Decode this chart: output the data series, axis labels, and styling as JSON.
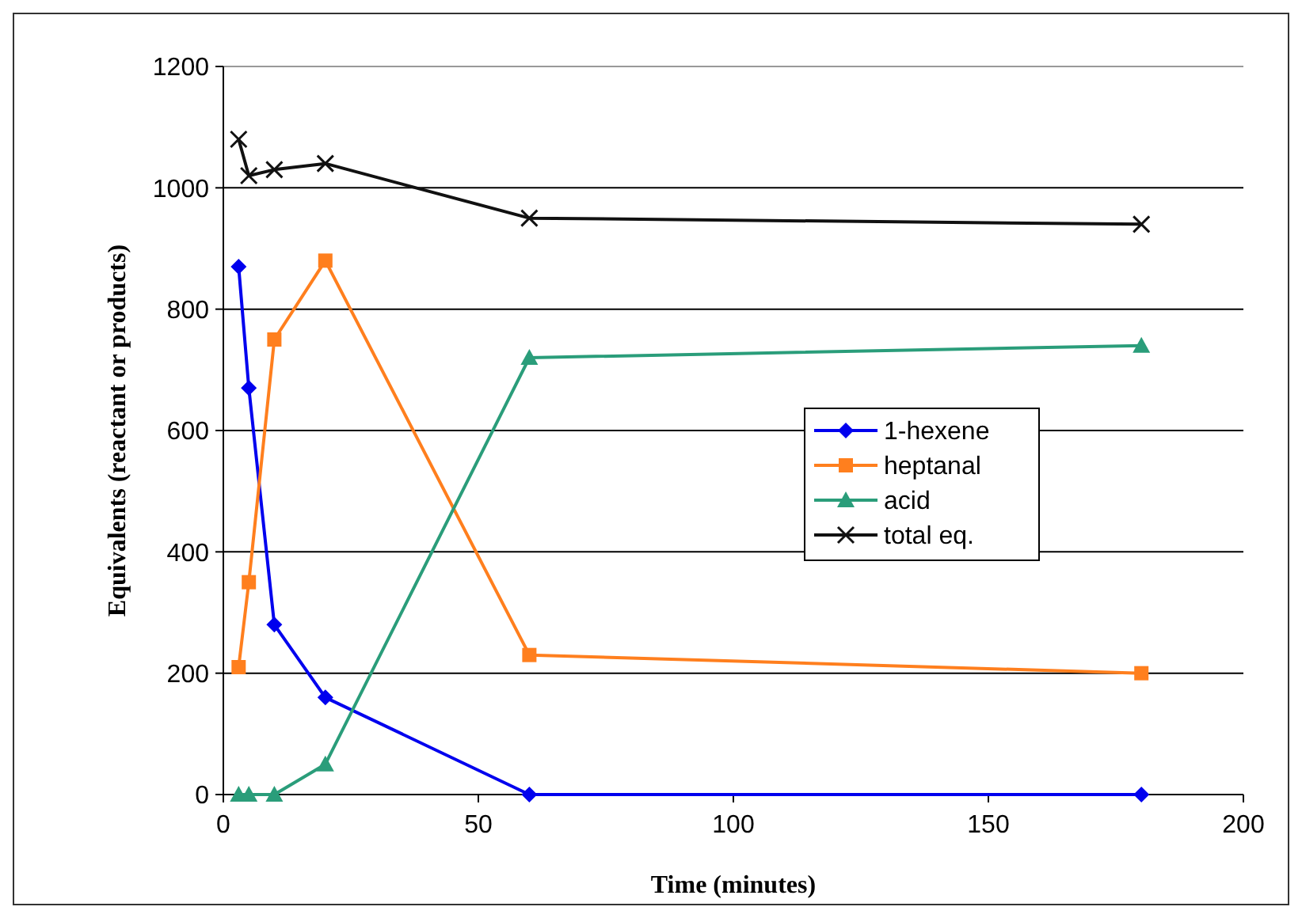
{
  "chart_data": {
    "type": "line",
    "xlabel": "Time (minutes)",
    "ylabel": "Equivalents (reactant or products)",
    "x": [
      3,
      5,
      10,
      20,
      60,
      180
    ],
    "series": [
      {
        "name": "1-hexene",
        "color": "#0000ee",
        "marker": "diamond",
        "values": [
          870,
          670,
          280,
          160,
          0,
          0
        ]
      },
      {
        "name": "heptanal",
        "color": "#ff7f1e",
        "marker": "square",
        "values": [
          210,
          350,
          750,
          880,
          230,
          200
        ]
      },
      {
        "name": "acid",
        "color": "#2a9d7a",
        "marker": "triangle",
        "values": [
          0,
          0,
          0,
          50,
          720,
          740
        ]
      },
      {
        "name": "total eq.",
        "color": "#111111",
        "marker": "cross",
        "values": [
          1080,
          1020,
          1030,
          1040,
          950,
          940
        ]
      }
    ],
    "xlim": [
      0,
      200
    ],
    "xticks": [
      0,
      50,
      100,
      150,
      200
    ],
    "ylim": [
      0,
      1200
    ],
    "yticks": [
      0,
      200,
      400,
      600,
      800,
      1000,
      1200
    ],
    "grid": "y",
    "legend": "right"
  }
}
